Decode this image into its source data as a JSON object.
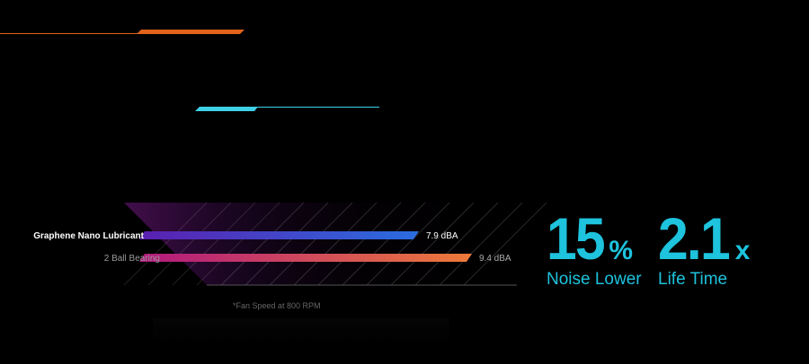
{
  "colors": {
    "background": "#000000",
    "accent_orange": "#e0621b",
    "accent_cyan": "#3fd1e6",
    "stat_cyan": "#1ec3dd",
    "graphene_bar_start": "#5a1fb0",
    "graphene_bar_end": "#2a6de0",
    "ball_bar_start": "#b0187e",
    "ball_bar_end": "#ee7a3a"
  },
  "chart_data": {
    "type": "bar",
    "orientation": "horizontal",
    "categories": [
      "Graphene Nano Lubricant",
      "2 Ball Bearing"
    ],
    "values": [
      7.9,
      9.4
    ],
    "value_labels": [
      "7.9 dBA",
      "9.4 dBA"
    ],
    "unit": "dBA",
    "grid": true,
    "footnote": "*Fan Speed at 800 RPM"
  },
  "stats": [
    {
      "value": "15",
      "unit": "%",
      "caption": "Noise Lower"
    },
    {
      "value": "2.1",
      "unit": "x",
      "caption": "Life Time"
    }
  ]
}
